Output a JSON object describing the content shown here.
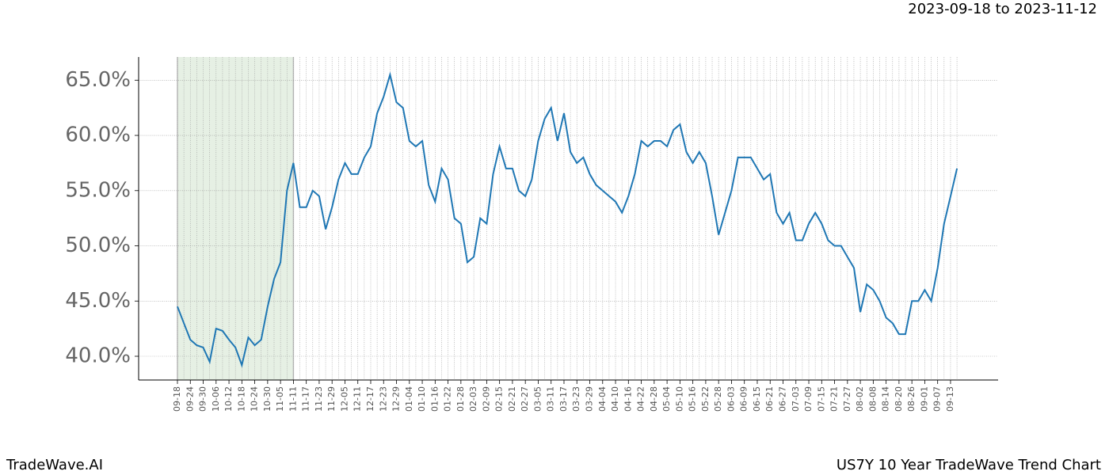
{
  "chart_data": {
    "type": "line",
    "title": "2023-09-18 to 2023-11-12",
    "footer_left": "TradeWave.AI",
    "footer_right": "US7Y 10 Year TradeWave Trend Chart",
    "categories": [
      "09-18",
      null,
      "09-24",
      null,
      "09-30",
      null,
      "10-06",
      null,
      "10-12",
      null,
      "10-18",
      null,
      "10-24",
      null,
      "10-30",
      null,
      "11-05",
      null,
      "11-11",
      null,
      "11-17",
      null,
      "11-23",
      null,
      "11-29",
      null,
      "12-05",
      null,
      "12-11",
      null,
      "12-17",
      null,
      "12-23",
      null,
      "12-29",
      null,
      "01-04",
      null,
      "01-10",
      null,
      "01-16",
      null,
      "01-22",
      null,
      "01-28",
      null,
      "02-03",
      null,
      "02-09",
      null,
      "02-15",
      null,
      "02-21",
      null,
      "02-27",
      null,
      "03-05",
      null,
      "03-11",
      null,
      "03-17",
      null,
      "03-23",
      null,
      "03-29",
      null,
      "04-04",
      null,
      "04-10",
      null,
      "04-16",
      null,
      "04-22",
      null,
      "04-28",
      null,
      "05-04",
      null,
      "05-10",
      null,
      "05-16",
      null,
      "05-22",
      null,
      "05-28",
      null,
      "06-03",
      null,
      "06-09",
      null,
      "06-15",
      null,
      "06-21",
      null,
      "06-27",
      null,
      "07-03",
      null,
      "07-09",
      null,
      "07-15",
      null,
      "07-21",
      null,
      "07-27",
      null,
      "08-02",
      null,
      "08-08",
      null,
      "08-14",
      null,
      "08-20",
      null,
      "08-26",
      null,
      "09-01",
      null,
      "09-07",
      null,
      "09-13",
      null
    ],
    "series": [
      {
        "color": "#1f77b4",
        "values": [
          44.5,
          43.0,
          41.5,
          41.0,
          40.8,
          39.5,
          42.5,
          42.3,
          41.5,
          40.8,
          39.2,
          41.7,
          41.0,
          41.5,
          44.5,
          47.0,
          48.5,
          55.0,
          57.5,
          53.5,
          53.5,
          55.0,
          54.5,
          51.5,
          53.5,
          56.0,
          57.5,
          56.5,
          56.5,
          58.0,
          59.0,
          62.0,
          63.5,
          65.5,
          63.0,
          62.5,
          59.5,
          59.0,
          59.5,
          55.5,
          54.0,
          57.0,
          56.0,
          52.5,
          52.0,
          48.5,
          49.0,
          52.5,
          52.0,
          56.5,
          59.0,
          57.0,
          57.0,
          55.0,
          54.5,
          56.0,
          59.5,
          61.5,
          62.5,
          59.5,
          62.0,
          58.5,
          57.5,
          58.0,
          56.5,
          55.5,
          55.0,
          54.5,
          54.0,
          53.0,
          54.5,
          56.5,
          59.5,
          59.0,
          59.5,
          59.5,
          59.0,
          60.5,
          61.0,
          58.5,
          57.5,
          58.5,
          57.5,
          54.5,
          51.0,
          53.0,
          55.0,
          58.0,
          58.0,
          58.0,
          57.0,
          56.0,
          56.5,
          53.0,
          52.0,
          53.0,
          50.5,
          50.5,
          52.0,
          53.0,
          52.0,
          50.5,
          50.0,
          50.0,
          49.0,
          48.0,
          44.0,
          46.5,
          46.0,
          45.0,
          43.5,
          43.0,
          42.0,
          42.0,
          45.0,
          45.0,
          46.0,
          45.0,
          48.0,
          52.0,
          54.5,
          57.0
        ]
      }
    ],
    "shade": {
      "from": "09-18",
      "to": "11-11",
      "color": "#e6f0e4"
    },
    "ylim": [
      37.85,
      67.1
    ],
    "yticks": [
      {
        "value": 40,
        "label": "40.0%"
      },
      {
        "value": 45,
        "label": "45.0%"
      },
      {
        "value": 50,
        "label": "50.0%"
      },
      {
        "value": 55,
        "label": "55.0%"
      },
      {
        "value": 60,
        "label": "60.0%"
      },
      {
        "value": 65,
        "label": "65.0%"
      }
    ],
    "grid": true
  }
}
